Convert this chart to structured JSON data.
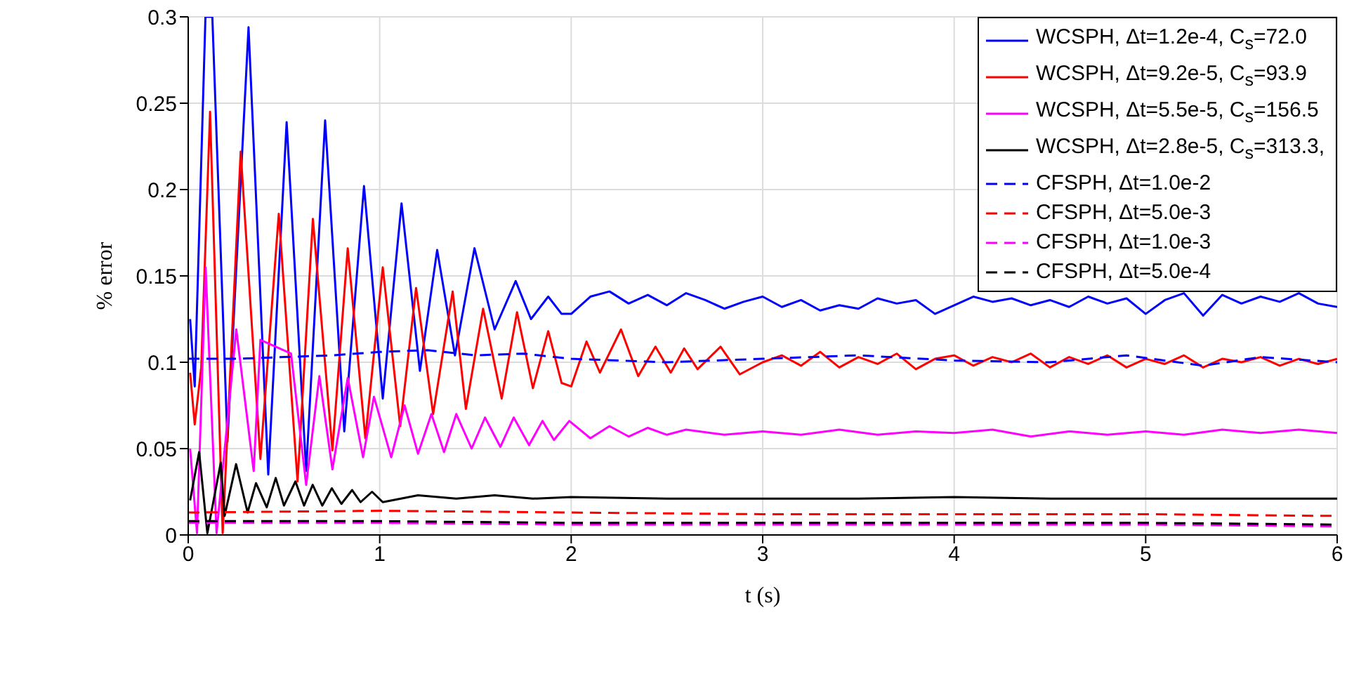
{
  "chart_data": {
    "type": "line",
    "xlabel": "t (s)",
    "ylabel": "% error",
    "xlim": [
      0,
      6
    ],
    "xticks": [
      0,
      1,
      2,
      3,
      4,
      5,
      6
    ],
    "ylim": [
      0,
      0.3
    ],
    "yticks": [
      0,
      0.05,
      0.1,
      0.15,
      0.2,
      0.25,
      0.3
    ],
    "grid": true,
    "legend": "top right",
    "marker": "none",
    "series": [
      {
        "name": "WCSPH, Δt=1.2e-4, C$_{s}$=72.0",
        "color": "#0000ff",
        "line_style": "solid",
        "x": [
          0.01,
          0.034,
          0.09,
          0.126,
          0.205,
          0.315,
          0.418,
          0.514,
          0.616,
          0.715,
          0.815,
          0.918,
          1.016,
          1.114,
          1.21,
          1.3,
          1.393,
          1.495,
          1.6,
          1.71,
          1.79,
          1.88,
          1.95,
          2.0,
          2.1,
          2.2,
          2.3,
          2.4,
          2.5,
          2.6,
          2.7,
          2.8,
          2.9,
          3.0,
          3.1,
          3.2,
          3.3,
          3.4,
          3.5,
          3.6,
          3.7,
          3.8,
          3.9,
          4.0,
          4.1,
          4.2,
          4.3,
          4.4,
          4.5,
          4.6,
          4.7,
          4.8,
          4.9,
          5.0,
          5.1,
          5.2,
          5.3,
          5.4,
          5.5,
          5.6,
          5.7,
          5.8,
          5.9,
          6.0
        ],
        "values": [
          0.125,
          0.086,
          0.3,
          0.3,
          0.054,
          0.294,
          0.035,
          0.239,
          0.037,
          0.24,
          0.06,
          0.202,
          0.079,
          0.192,
          0.095,
          0.165,
          0.104,
          0.166,
          0.119,
          0.147,
          0.125,
          0.138,
          0.128,
          0.128,
          0.138,
          0.141,
          0.134,
          0.139,
          0.133,
          0.14,
          0.136,
          0.131,
          0.135,
          0.138,
          0.132,
          0.136,
          0.13,
          0.133,
          0.131,
          0.137,
          0.134,
          0.136,
          0.128,
          0.133,
          0.138,
          0.135,
          0.137,
          0.133,
          0.136,
          0.132,
          0.138,
          0.134,
          0.137,
          0.128,
          0.136,
          0.14,
          0.127,
          0.139,
          0.134,
          0.138,
          0.135,
          0.14,
          0.134,
          0.132
        ]
      },
      {
        "name": "WCSPH, Δt=9.2e-5, C$_{s}$=93.9",
        "color": "#ff0000",
        "line_style": "solid",
        "x": [
          0.01,
          0.034,
          0.068,
          0.114,
          0.18,
          0.274,
          0.377,
          0.473,
          0.571,
          0.651,
          0.753,
          0.833,
          0.925,
          1.016,
          1.107,
          1.19,
          1.279,
          1.381,
          1.45,
          1.54,
          1.637,
          1.717,
          1.8,
          1.88,
          1.95,
          2.0,
          2.08,
          2.15,
          2.26,
          2.35,
          2.44,
          2.52,
          2.59,
          2.66,
          2.78,
          2.88,
          3.0,
          3.1,
          3.2,
          3.3,
          3.4,
          3.5,
          3.6,
          3.7,
          3.8,
          3.9,
          4.0,
          4.1,
          4.2,
          4.3,
          4.4,
          4.5,
          4.6,
          4.7,
          4.8,
          4.9,
          5.0,
          5.1,
          5.2,
          5.3,
          5.4,
          5.5,
          5.6,
          5.7,
          5.8,
          5.9,
          6.0
        ],
        "values": [
          0.094,
          0.064,
          0.097,
          0.245,
          0.001,
          0.222,
          0.044,
          0.186,
          0.031,
          0.183,
          0.049,
          0.166,
          0.056,
          0.155,
          0.063,
          0.143,
          0.07,
          0.141,
          0.073,
          0.131,
          0.079,
          0.129,
          0.085,
          0.118,
          0.088,
          0.086,
          0.112,
          0.094,
          0.119,
          0.092,
          0.109,
          0.094,
          0.108,
          0.096,
          0.109,
          0.093,
          0.1,
          0.104,
          0.098,
          0.106,
          0.097,
          0.103,
          0.099,
          0.105,
          0.096,
          0.102,
          0.104,
          0.098,
          0.103,
          0.1,
          0.105,
          0.097,
          0.103,
          0.099,
          0.104,
          0.097,
          0.102,
          0.099,
          0.104,
          0.097,
          0.102,
          0.1,
          0.103,
          0.098,
          0.102,
          0.099,
          0.102
        ]
      },
      {
        "name": "WCSPH, Δt=5.5e-5, C$_{s}$=156.5",
        "color": "#ff00ff",
        "line_style": "solid",
        "x": [
          0.01,
          0.046,
          0.091,
          0.148,
          0.251,
          0.342,
          0.377,
          0.537,
          0.616,
          0.685,
          0.753,
          0.833,
          0.913,
          0.97,
          1.06,
          1.13,
          1.2,
          1.27,
          1.336,
          1.4,
          1.48,
          1.55,
          1.63,
          1.7,
          1.78,
          1.85,
          1.91,
          1.99,
          2.1,
          2.2,
          2.3,
          2.4,
          2.5,
          2.6,
          2.8,
          3.0,
          3.2,
          3.4,
          3.6,
          3.8,
          4.0,
          4.2,
          4.4,
          4.6,
          4.8,
          5.0,
          5.2,
          5.4,
          5.6,
          5.8,
          6.0
        ],
        "values": [
          0.05,
          0.001,
          0.155,
          0.001,
          0.119,
          0.037,
          0.113,
          0.105,
          0.029,
          0.092,
          0.038,
          0.091,
          0.045,
          0.08,
          0.045,
          0.075,
          0.047,
          0.07,
          0.048,
          0.07,
          0.05,
          0.068,
          0.051,
          0.068,
          0.052,
          0.066,
          0.055,
          0.066,
          0.056,
          0.063,
          0.057,
          0.062,
          0.058,
          0.061,
          0.058,
          0.06,
          0.058,
          0.061,
          0.058,
          0.06,
          0.059,
          0.061,
          0.057,
          0.06,
          0.058,
          0.06,
          0.058,
          0.061,
          0.059,
          0.061,
          0.059
        ]
      },
      {
        "name": "WCSPH, Δt=2.8e-5, C$_{s}$=313.3,",
        "color": "#000000",
        "line_style": "solid",
        "x": [
          0.01,
          0.057,
          0.1,
          0.17,
          0.19,
          0.25,
          0.31,
          0.354,
          0.41,
          0.457,
          0.5,
          0.56,
          0.605,
          0.65,
          0.7,
          0.75,
          0.8,
          0.856,
          0.9,
          0.96,
          1.016,
          1.2,
          1.4,
          1.6,
          1.8,
          2.0,
          2.5,
          3.0,
          3.5,
          4.0,
          4.5,
          5.0,
          5.5,
          6.0
        ],
        "values": [
          0.02,
          0.048,
          0.001,
          0.042,
          0.011,
          0.041,
          0.013,
          0.03,
          0.016,
          0.033,
          0.017,
          0.031,
          0.017,
          0.029,
          0.017,
          0.027,
          0.018,
          0.026,
          0.019,
          0.025,
          0.019,
          0.023,
          0.021,
          0.023,
          0.021,
          0.022,
          0.021,
          0.021,
          0.021,
          0.022,
          0.021,
          0.021,
          0.021,
          0.021
        ]
      },
      {
        "name": "CFSPH, Δt=1.0e-2",
        "color": "#0000ff",
        "line_style": "dashed",
        "x": [
          0,
          0.25,
          0.5,
          0.75,
          1.0,
          1.25,
          1.5,
          1.75,
          2,
          2.5,
          3,
          3.5,
          4,
          4.5,
          4.9,
          5.3,
          5.6,
          6
        ],
        "values": [
          0.102,
          0.102,
          0.103,
          0.104,
          0.106,
          0.107,
          0.104,
          0.105,
          0.102,
          0.1,
          0.102,
          0.104,
          0.101,
          0.1,
          0.104,
          0.098,
          0.103,
          0.1
        ]
      },
      {
        "name": "CFSPH, Δt=5.0e-3",
        "color": "#ff0000",
        "line_style": "dashed",
        "x": [
          0,
          1,
          2,
          3,
          4,
          5,
          6
        ],
        "values": [
          0.013,
          0.014,
          0.013,
          0.012,
          0.012,
          0.012,
          0.011
        ]
      },
      {
        "name": "CFSPH, Δt=1.0e-3",
        "color": "#ff00ff",
        "line_style": "dashed",
        "x": [
          0,
          1,
          2,
          3,
          4,
          5,
          6
        ],
        "values": [
          0.007,
          0.007,
          0.006,
          0.006,
          0.006,
          0.006,
          0.005
        ]
      },
      {
        "name": "CFSPH, Δt=5.0e-4",
        "color": "#000000",
        "line_style": "dashed",
        "x": [
          0,
          1,
          2,
          3,
          4,
          5,
          6
        ],
        "values": [
          0.008,
          0.008,
          0.007,
          0.007,
          0.007,
          0.007,
          0.006
        ]
      }
    ]
  }
}
